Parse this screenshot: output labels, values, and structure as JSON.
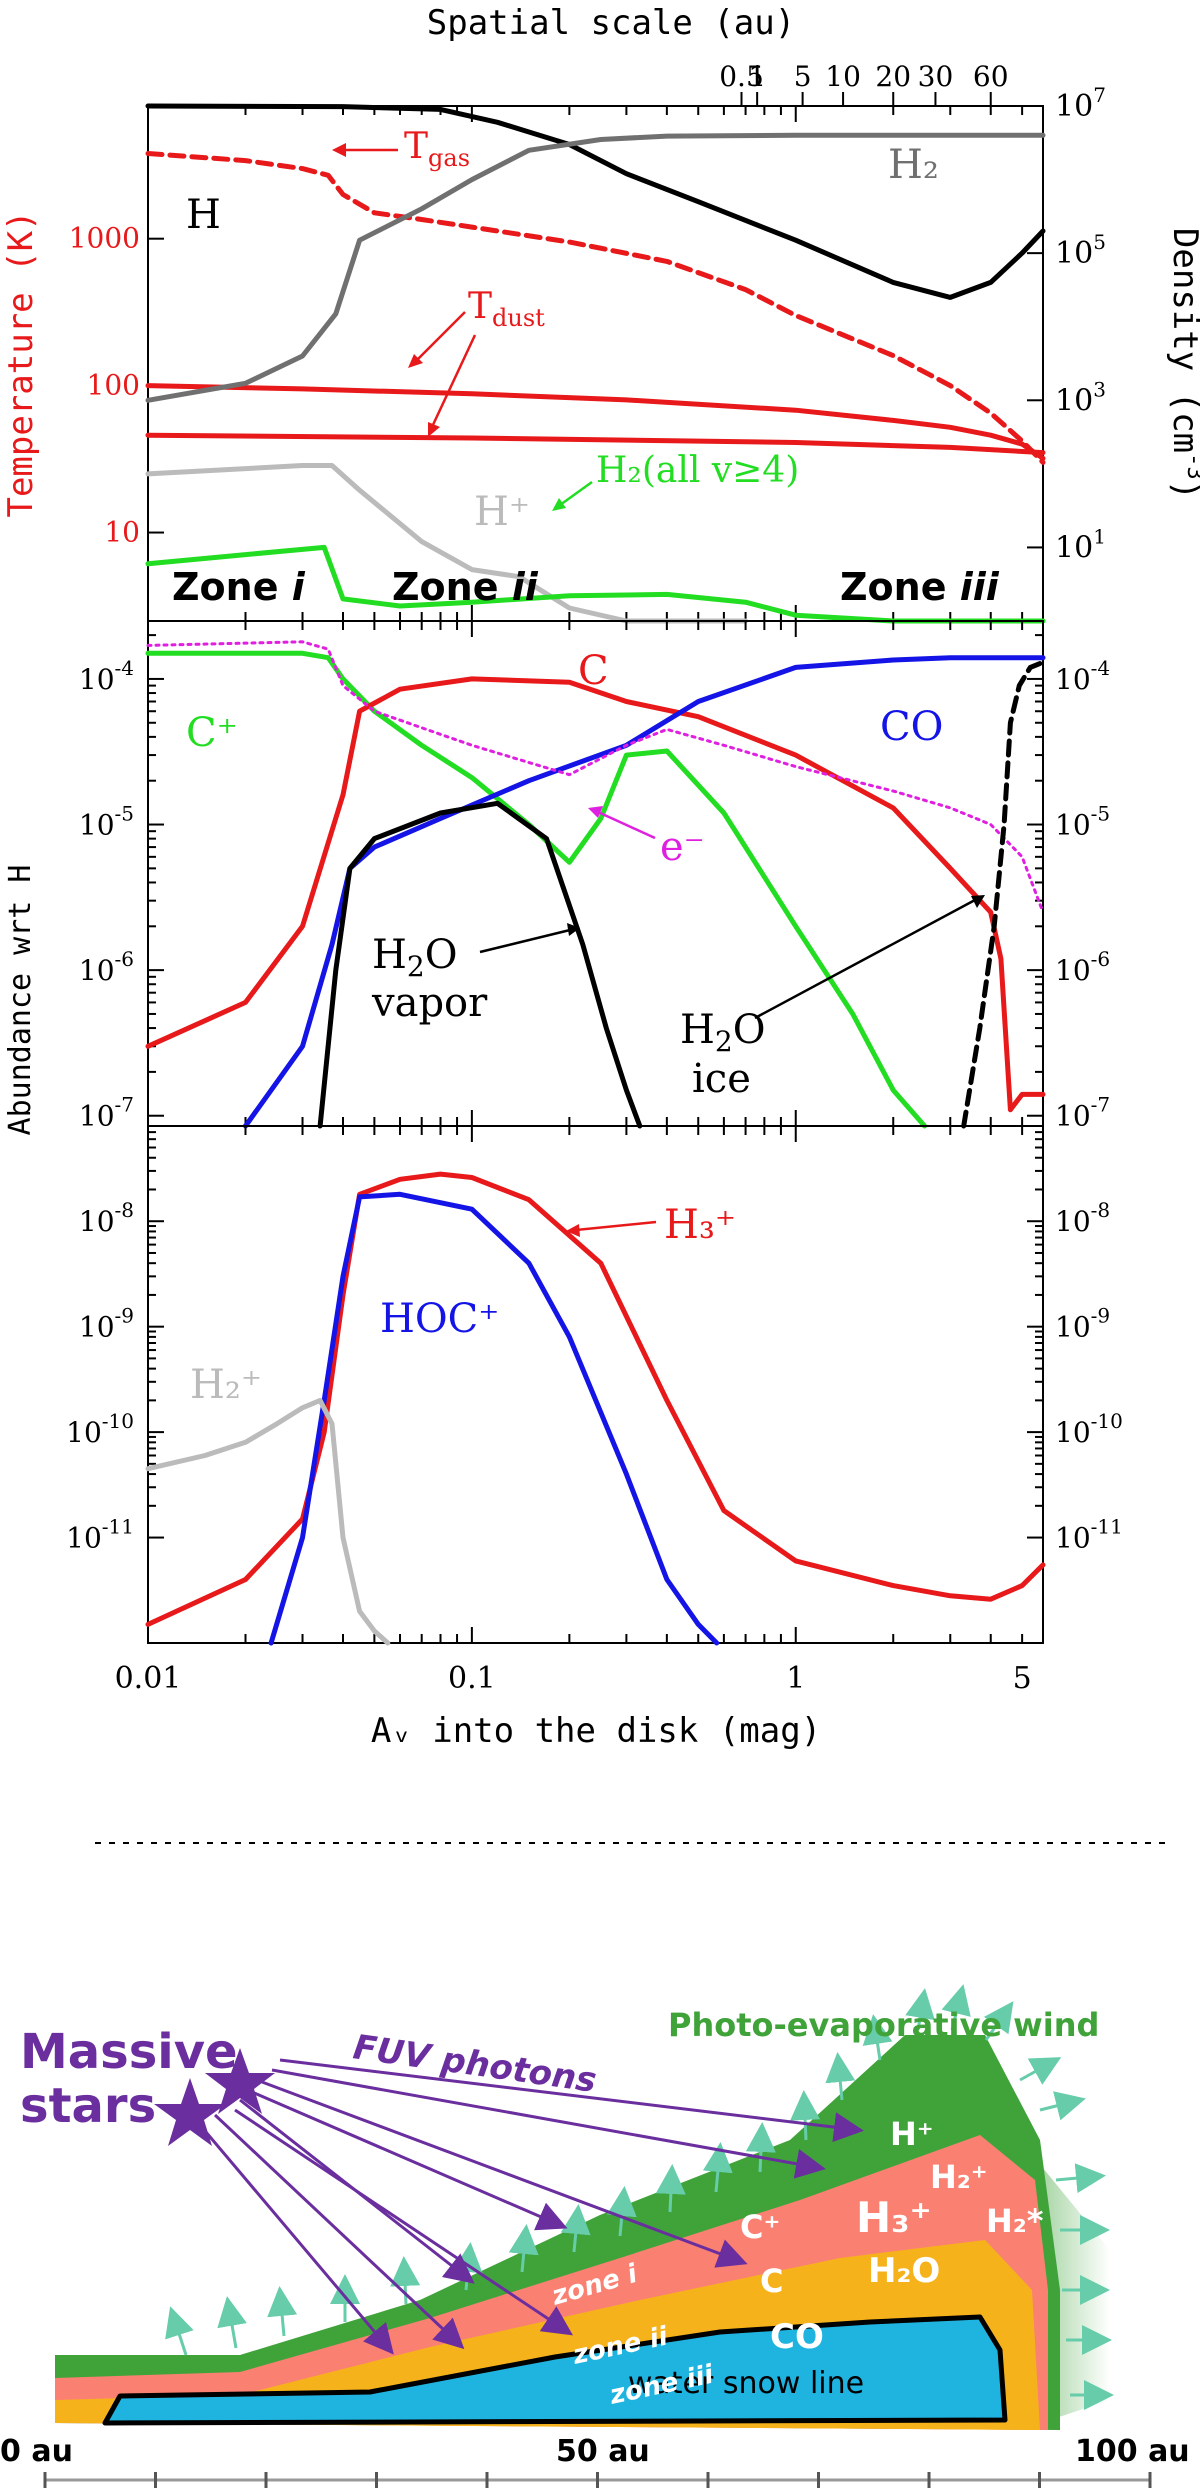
{
  "top_axis": {
    "title": "Spatial scale (au)",
    "ticks": [
      {
        "label": "0.5",
        "pos": 0.68
      },
      {
        "label": "1",
        "pos": 0.76
      },
      {
        "label": "5",
        "pos": 1.05
      },
      {
        "label": "10",
        "pos": 1.4
      },
      {
        "label": "20",
        "pos": 2.0
      },
      {
        "label": "30",
        "pos": 2.7
      },
      {
        "label": "60",
        "pos": 4.0
      }
    ]
  },
  "bottom_axis": {
    "title": "Aᵥ into the disk (mag)",
    "ticks": [
      {
        "label": "0.01",
        "pos": 0.01
      },
      {
        "label": "0.1",
        "pos": 0.1
      },
      {
        "label": "1",
        "pos": 1
      },
      {
        "label": "5",
        "pos": 5
      }
    ]
  },
  "chart_data": [
    {
      "type": "line",
      "panel": "temperature and density",
      "xlabel": "Aᵥ into the disk (mag)",
      "ylabel": "Temperature (K)",
      "ylabel_right": "Density (cm⁻³)",
      "xscale": "log",
      "yscale": "log",
      "xlim": [
        0.01,
        5.8
      ],
      "ylim": [
        2.5,
        8000
      ],
      "y_right_lim": [
        1,
        10000000
      ],
      "left_ticks": [
        {
          "label": "10",
          "value": 10
        },
        {
          "label": "100",
          "value": 100
        },
        {
          "label": "1000",
          "value": 1000
        }
      ],
      "right_ticks": [
        {
          "base": "10",
          "exp": "1",
          "value": 10
        },
        {
          "base": "10",
          "exp": "3",
          "value": 1000
        },
        {
          "base": "10",
          "exp": "5",
          "value": 100000
        },
        {
          "base": "10",
          "exp": "7",
          "value": 10000000
        }
      ],
      "series": [
        {
          "name": "T_gas",
          "axis": "left",
          "color": "#e8191a",
          "dash": true,
          "x": [
            0.01,
            0.02,
            0.03,
            0.036,
            0.04,
            0.05,
            0.07,
            0.1,
            0.2,
            0.4,
            0.7,
            1,
            2,
            3,
            4,
            5,
            5.8
          ],
          "y": [
            3800,
            3400,
            3000,
            2700,
            2000,
            1500,
            1350,
            1200,
            950,
            700,
            450,
            300,
            160,
            100,
            65,
            42,
            30
          ]
        },
        {
          "name": "T_dust (upper)",
          "axis": "left",
          "color": "#e8191a",
          "x": [
            0.01,
            0.03,
            0.1,
            0.3,
            1,
            2,
            3,
            4,
            5,
            5.8
          ],
          "y": [
            100,
            95,
            88,
            80,
            68,
            58,
            52,
            46,
            40,
            32
          ]
        },
        {
          "name": "T_dust (lower)",
          "axis": "left",
          "color": "#e8191a",
          "x": [
            0.01,
            0.1,
            1,
            3,
            5.8
          ],
          "y": [
            46,
            44,
            41,
            38,
            35
          ]
        },
        {
          "name": "H",
          "axis": "right",
          "color": "#000000",
          "x": [
            0.01,
            0.04,
            0.08,
            0.12,
            0.2,
            0.3,
            0.5,
            1,
            2,
            3,
            4,
            5,
            5.8
          ],
          "y": [
            10000000,
            9800000,
            9000000,
            6000000,
            3000000,
            1200000,
            500000,
            150000,
            40000,
            25000,
            40000,
            100000,
            200000
          ]
        },
        {
          "name": "H₂",
          "axis": "right",
          "color": "#707070",
          "x": [
            0.01,
            0.02,
            0.03,
            0.038,
            0.045,
            0.07,
            0.1,
            0.15,
            0.25,
            0.4,
            1,
            5.8
          ],
          "y": [
            1000,
            1700,
            4000,
            15000,
            150000,
            400000,
            1000000,
            2500000,
            3500000,
            3900000,
            4000000,
            4000000
          ]
        },
        {
          "name": "H⁺",
          "axis": "right",
          "color": "#bbbbbb",
          "x": [
            0.01,
            0.03,
            0.037,
            0.045,
            0.07,
            0.1,
            0.14,
            0.2,
            0.3,
            0.45,
            0.7
          ],
          "y": [
            100,
            130,
            130,
            60,
            12,
            5,
            4,
            1.5,
            0.25,
            0.18,
            0.05
          ]
        },
        {
          "name": "H₂(all v≥4)",
          "axis": "right",
          "color": "#22dd22",
          "x": [
            0.01,
            0.02,
            0.035,
            0.04,
            0.06,
            0.1,
            0.2,
            0.4,
            0.7,
            1,
            2,
            3,
            4,
            5,
            5.8
          ],
          "y": [
            6,
            8,
            10,
            2,
            1.6,
            1.8,
            2.2,
            2.3,
            1.8,
            1.2,
            0.6,
            0.35,
            0.18,
            0.06,
            0.02
          ]
        }
      ],
      "labels": [
        {
          "text": "H",
          "color": "#000000"
        },
        {
          "text": "H₂",
          "color": "#707070"
        },
        {
          "text": "T_gas",
          "color": "#e8191a"
        },
        {
          "text": "T_dust",
          "color": "#e8191a"
        },
        {
          "text": "H⁺",
          "color": "#bbbbbb"
        },
        {
          "text": "H₂(all v≥4)",
          "color": "#22dd22"
        }
      ],
      "zones": [
        "Zone i",
        "Zone ii",
        "Zone iii"
      ]
    },
    {
      "type": "line",
      "panel": "main species abundances",
      "xlabel": "Aᵥ into the disk (mag)",
      "ylabel": "Abundance wrt H",
      "xscale": "log",
      "yscale": "log",
      "xlim": [
        0.01,
        5.8
      ],
      "ylim": [
        8.5e-08,
        0.00025
      ],
      "ticks": [
        {
          "exp": "-4",
          "value": 0.0001
        },
        {
          "exp": "-5",
          "value": 1e-05
        },
        {
          "exp": "-6",
          "value": 1e-06
        },
        {
          "exp": "-7",
          "value": 1e-07
        }
      ],
      "series": [
        {
          "name": "C⁺",
          "color": "#22dd22",
          "x": [
            0.01,
            0.03,
            0.036,
            0.04,
            0.05,
            0.07,
            0.1,
            0.15,
            0.2,
            0.25,
            0.3,
            0.4,
            0.6,
            1,
            1.5,
            2,
            2.5
          ],
          "y": [
            0.00015,
            0.00015,
            0.00014,
            0.0001,
            6e-05,
            3.5e-05,
            2.1e-05,
            1e-05,
            5.5e-06,
            1.1e-05,
            3e-05,
            3.2e-05,
            1.2e-05,
            2e-06,
            5e-07,
            1.5e-07,
            6e-08
          ]
        },
        {
          "name": "C",
          "color": "#e8191a",
          "x": [
            0.01,
            0.02,
            0.03,
            0.04,
            0.045,
            0.06,
            0.1,
            0.2,
            0.3,
            0.5,
            1,
            2,
            3,
            4,
            4.3,
            4.6,
            5,
            5.8
          ],
          "y": [
            3e-07,
            6e-07,
            2e-06,
            1.6e-05,
            6e-05,
            8.5e-05,
            0.0001,
            9.5e-05,
            7e-05,
            5.5e-05,
            3e-05,
            1.3e-05,
            5e-06,
            2.5e-06,
            1.2e-06,
            1.1e-07,
            1.4e-07,
            1.4e-07
          ]
        },
        {
          "name": "CO",
          "color": "#1414e6",
          "x": [
            0.02,
            0.03,
            0.037,
            0.042,
            0.05,
            0.08,
            0.15,
            0.3,
            0.5,
            1,
            2,
            3,
            5.8
          ],
          "y": [
            8e-08,
            3e-07,
            1.5e-06,
            5e-06,
            7e-06,
            1.1e-05,
            2e-05,
            3.5e-05,
            7e-05,
            0.00012,
            0.000135,
            0.00014,
            0.00014
          ]
        },
        {
          "name": "e⁻",
          "color": "#e020e0",
          "dash": true,
          "x": [
            0.01,
            0.03,
            0.036,
            0.04,
            0.05,
            0.1,
            0.2,
            0.3,
            0.4,
            0.6,
            1,
            2,
            3,
            4,
            5,
            5.8
          ],
          "y": [
            0.00017,
            0.00018,
            0.00016,
            9e-05,
            6e-05,
            3.5e-05,
            2.2e-05,
            3.5e-05,
            4.5e-05,
            3.5e-05,
            2.5e-05,
            1.7e-05,
            1.3e-05,
            1e-05,
            6e-06,
            2.5e-06
          ]
        },
        {
          "name": "H₂O vapor",
          "color": "#000000",
          "x": [
            0.034,
            0.038,
            0.042,
            0.05,
            0.08,
            0.12,
            0.17,
            0.22,
            0.26,
            0.3,
            0.33
          ],
          "y": [
            8e-08,
            1e-06,
            5e-06,
            8e-06,
            1.2e-05,
            1.4e-05,
            8e-06,
            1.5e-06,
            4e-07,
            1.5e-07,
            8e-08
          ]
        },
        {
          "name": "H₂O ice",
          "color": "#000000",
          "dash": true,
          "x": [
            3.3,
            3.7,
            4.1,
            4.4,
            4.6,
            4.9,
            5.3,
            5.8
          ],
          "y": [
            8.5e-08,
            4e-07,
            2e-06,
            1e-05,
            5e-05,
            9e-05,
            0.00012,
            0.00013
          ]
        }
      ],
      "labels": [
        {
          "text": "C⁺",
          "color": "#22dd22"
        },
        {
          "text": "C",
          "color": "#e8191a"
        },
        {
          "text": "CO",
          "color": "#1414e6"
        },
        {
          "text": "e⁻",
          "color": "#e020e0"
        },
        {
          "text": "H₂O vapor",
          "color": "#000000"
        },
        {
          "text": "H₂O ice",
          "color": "#000000"
        }
      ]
    },
    {
      "type": "line",
      "panel": "ion abundances",
      "xlabel": "Aᵥ into the disk (mag)",
      "ylabel": "Abundance wrt H",
      "xscale": "log",
      "yscale": "log",
      "xlim": [
        0.01,
        5.8
      ],
      "ylim": [
        1e-12,
        8e-08
      ],
      "ticks": [
        {
          "exp": "-8",
          "value": 1e-08
        },
        {
          "exp": "-9",
          "value": 1e-09
        },
        {
          "exp": "-10",
          "value": 1e-10
        },
        {
          "exp": "-11",
          "value": 1e-11
        }
      ],
      "series": [
        {
          "name": "H₃⁺",
          "color": "#e8191a",
          "x": [
            0.01,
            0.02,
            0.03,
            0.035,
            0.04,
            0.045,
            0.06,
            0.08,
            0.1,
            0.15,
            0.25,
            0.4,
            0.6,
            1,
            2,
            3,
            4,
            5,
            5.8
          ],
          "y": [
            1.5e-12,
            4e-12,
            1.5e-11,
            1e-10,
            2e-09,
            1.8e-08,
            2.5e-08,
            2.8e-08,
            2.6e-08,
            1.6e-08,
            4e-09,
            2e-10,
            1.8e-11,
            6e-12,
            3.5e-12,
            2.8e-12,
            2.6e-12,
            3.5e-12,
            5.5e-12
          ]
        },
        {
          "name": "HOC⁺",
          "color": "#1414e6",
          "x": [
            0.024,
            0.03,
            0.035,
            0.04,
            0.045,
            0.06,
            0.1,
            0.15,
            0.2,
            0.3,
            0.4,
            0.5,
            0.57
          ],
          "y": [
            1e-12,
            1e-11,
            2e-10,
            3e-09,
            1.7e-08,
            1.8e-08,
            1.3e-08,
            4e-09,
            8e-10,
            4e-11,
            4e-12,
            1.5e-12,
            1e-12
          ]
        },
        {
          "name": "H₂⁺",
          "color": "#bbbbbb",
          "x": [
            0.01,
            0.015,
            0.02,
            0.025,
            0.03,
            0.034,
            0.037,
            0.04,
            0.045,
            0.05,
            0.055
          ],
          "y": [
            4.5e-11,
            6e-11,
            8e-11,
            1.2e-10,
            1.7e-10,
            2e-10,
            1.2e-10,
            1e-11,
            2e-12,
            1.3e-12,
            1e-12
          ]
        }
      ],
      "labels": [
        {
          "text": "H₃⁺",
          "color": "#e8191a"
        },
        {
          "text": "HOC⁺",
          "color": "#1414e6"
        },
        {
          "text": "H₂⁺",
          "color": "#bbbbbb"
        }
      ]
    }
  ],
  "diagram": {
    "source_label_line1": "Massive",
    "source_label_line2": "stars",
    "photons_label": "FUV photons",
    "wind_label": "Photo-evaporative wind",
    "zone_i": "zone i",
    "zone_ii": "zone ii",
    "zone_iii": "zone iii",
    "snow_line": "water snow line",
    "species": {
      "h_plus": "H⁺",
      "h2_plus": "H₂⁺",
      "h3_plus": "H₃⁺",
      "h2_star": "H₂*",
      "c_plus": "C⁺",
      "c": "C",
      "h2o": "H₂O",
      "co": "CO"
    },
    "scale_labels": [
      "0 au",
      "50 au",
      "100 au"
    ],
    "colors": {
      "purple": "#6a2e9e",
      "wind_green": "#3fa33a",
      "pink": "#fa8072",
      "gold": "#f6b21b",
      "snow_blue": "#1fb3e0",
      "arrow_teal": "#66ccaa"
    }
  }
}
